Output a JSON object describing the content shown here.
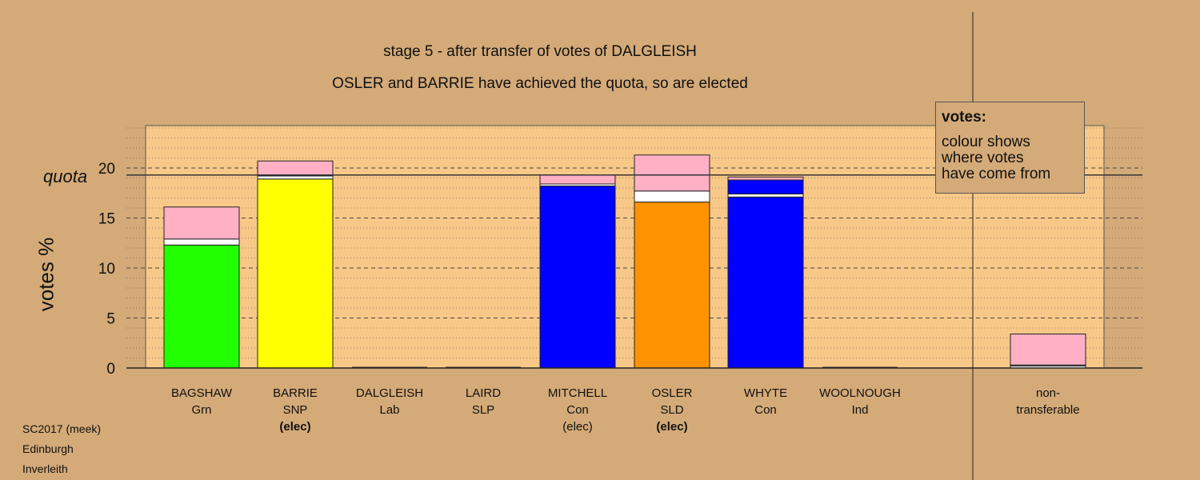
{
  "header": {
    "title": "stage 5 - after transfer of votes of DALGLEISH",
    "subtitle": "OSLER and BARRIE have achieved the quota, so are elected"
  },
  "legend": {
    "heading": "votes:",
    "lines": [
      "colour shows",
      "where votes",
      "have come from"
    ]
  },
  "source": {
    "line1": "SC2017 (meek)",
    "line2": "Edinburgh",
    "line3": "Inverleith"
  },
  "colors": {
    "background": "#d4aa78",
    "plot_area": "#f8c888",
    "transfer_pink": "#ffb0c4",
    "grn": "#22ff00",
    "snp": "#ffff00",
    "con": "#0000ff",
    "sld": "#ff9200"
  },
  "chart_data": {
    "type": "bar",
    "stacked": true,
    "ylabel": "votes %",
    "quota_label": "quota",
    "quota": 19.3,
    "ylim": [
      0,
      24
    ],
    "yticks": [
      0,
      5,
      10,
      15,
      20
    ],
    "categories": [
      {
        "name": "BAGSHAW",
        "party": "Grn",
        "status": ""
      },
      {
        "name": "BARRIE",
        "party": "SNP",
        "status": "(elec)",
        "status_bold": true
      },
      {
        "name": "DALGLEISH",
        "party": "Lab",
        "status": ""
      },
      {
        "name": "LAIRD",
        "party": "SLP",
        "status": ""
      },
      {
        "name": "MITCHELL",
        "party": "Con",
        "status": "(elec)",
        "status_bold": false
      },
      {
        "name": "OSLER",
        "party": "SLD",
        "status": "(elec)",
        "status_bold": true
      },
      {
        "name": "WHYTE",
        "party": "Con",
        "status": ""
      },
      {
        "name": "WOOLNOUGH",
        "party": "Ind",
        "status": ""
      },
      {
        "name": "non-",
        "party": "transferable",
        "status": ""
      }
    ],
    "bars": [
      [
        {
          "v": 12.3,
          "c": "grn"
        },
        {
          "v": 0.6,
          "c": "white"
        },
        {
          "v": 3.2,
          "c": "pink"
        }
      ],
      [
        {
          "v": 18.9,
          "c": "snp"
        },
        {
          "v": 0.3,
          "c": "white"
        },
        {
          "v": 1.5,
          "c": "pink"
        }
      ],
      [],
      [],
      [
        {
          "v": 18.2,
          "c": "con"
        },
        {
          "v": 0.2,
          "c": "white"
        },
        {
          "v": 0.9,
          "c": "pink"
        }
      ],
      [
        {
          "v": 16.6,
          "c": "sld"
        },
        {
          "v": 1.1,
          "c": "white"
        },
        {
          "v": 3.6,
          "c": "pink"
        }
      ],
      [
        {
          "v": 17.1,
          "c": "con"
        },
        {
          "v": 0.3,
          "c": "white"
        },
        {
          "v": 1.4,
          "c": "con"
        },
        {
          "v": 0.3,
          "c": "pink"
        }
      ],
      [],
      [
        {
          "v": 0.2,
          "c": "white"
        },
        {
          "v": 0.1,
          "c": "white"
        },
        {
          "v": 3.1,
          "c": "pink"
        }
      ]
    ]
  }
}
